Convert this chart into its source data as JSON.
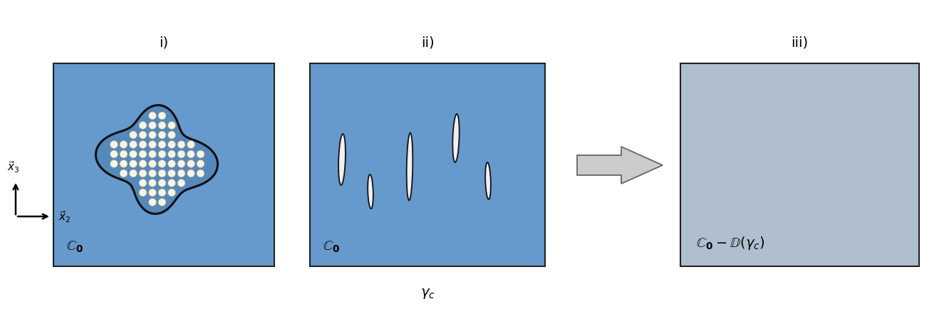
{
  "bg_color": "#ffffff",
  "box1_color": "#6699cc",
  "box2_color": "#6699cc",
  "box3_color": "#b0bfd0",
  "box_edge_color": "#222222",
  "label_i": "i)",
  "label_ii": "ii)",
  "label_iii": "iii)",
  "label_C0": "$\\mathbb{C}_{\\mathbf{0}}$",
  "label_C0_iii": "$\\mathbb{C}_{\\mathbf{0}} - \\mathbb{D}(\\gamma_c)$",
  "gamma_c": "$\\gamma_c$",
  "blob_color": "#5588bb",
  "blob_edge_color": "#111111",
  "circle_color": "#f5f5e8",
  "crack_fill": "#f0f0f0",
  "crack_edge": "#111111",
  "arrow_fill": "#cccccc",
  "arrow_edge": "#666666"
}
